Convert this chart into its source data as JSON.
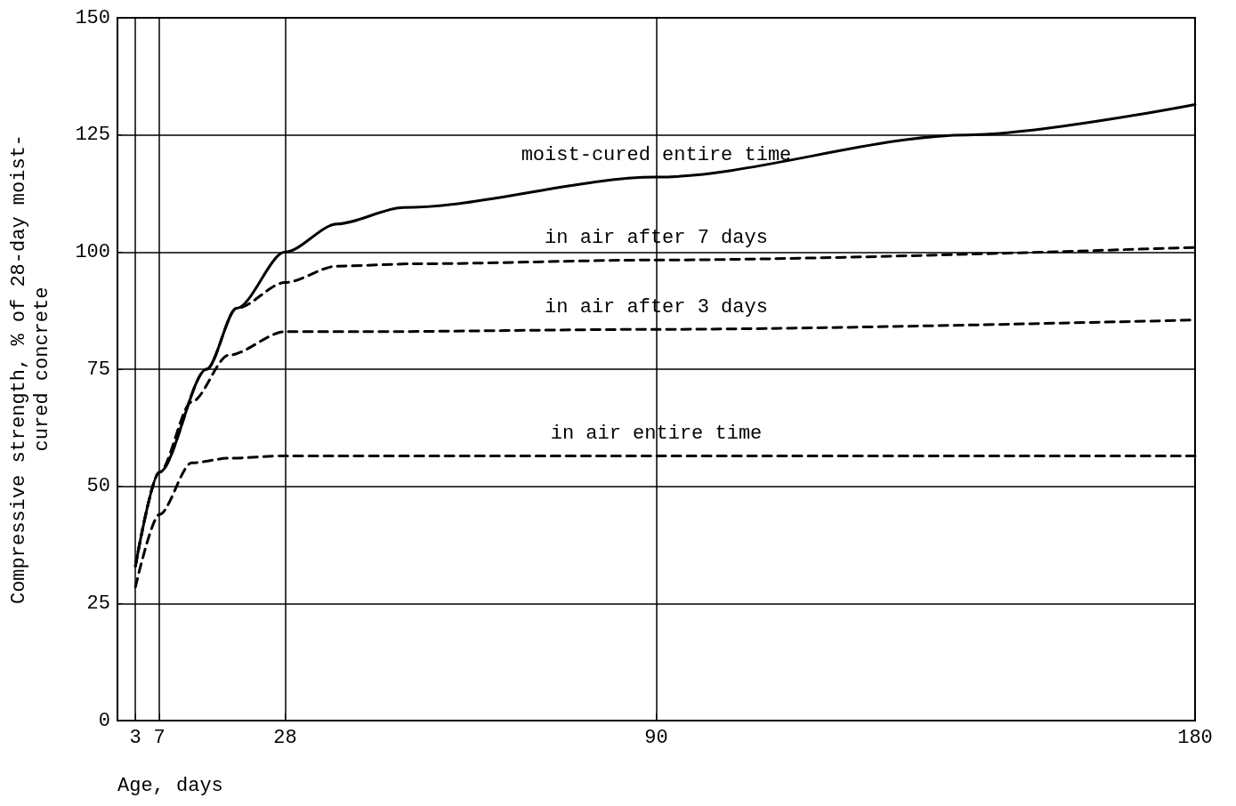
{
  "chart_data": {
    "type": "line",
    "xlabel": "Age, days",
    "ylabel": "Compressive strength, % of 28-day moist-\ncured concrete",
    "xlim": [
      0,
      180
    ],
    "xticks": [
      3,
      7,
      28,
      90,
      180
    ],
    "ylim": [
      0,
      150
    ],
    "yticks": [
      0,
      25,
      50,
      75,
      100,
      125,
      150
    ],
    "grid": true,
    "legend": false,
    "marker": "none",
    "series": [
      {
        "name": "moist-cured entire time",
        "color": "#000000",
        "line_style": "solid",
        "x": [
          3,
          7,
          14.9,
          19.9,
          28,
          36.7,
          47.8,
          90,
          142,
          180
        ],
        "values": [
          33,
          53,
          75,
          88,
          100,
          106,
          109.5,
          116,
          125,
          131.5
        ]
      },
      {
        "name": "in air after 7 days",
        "color": "#000000",
        "line_style": "dashed",
        "x": [
          3,
          7,
          14.9,
          19.9,
          28,
          36.7,
          50,
          90,
          180
        ],
        "values": [
          33,
          53,
          75,
          88,
          93.5,
          97,
          97.5,
          98.3,
          101
        ]
      },
      {
        "name": "in air after 3 days",
        "color": "#000000",
        "line_style": "dashed",
        "x": [
          3,
          7,
          12.4,
          18.6,
          28,
          40,
          90,
          180
        ],
        "values": [
          33,
          53,
          68,
          78,
          83,
          83,
          83.5,
          85.5
        ]
      },
      {
        "name": "in air entire time",
        "color": "#000000",
        "line_style": "dashed",
        "x": [
          3,
          7,
          12.4,
          18.6,
          28,
          90,
          180
        ],
        "values": [
          28.5,
          44,
          55,
          56,
          56.5,
          56.5,
          56.5
        ]
      }
    ]
  }
}
